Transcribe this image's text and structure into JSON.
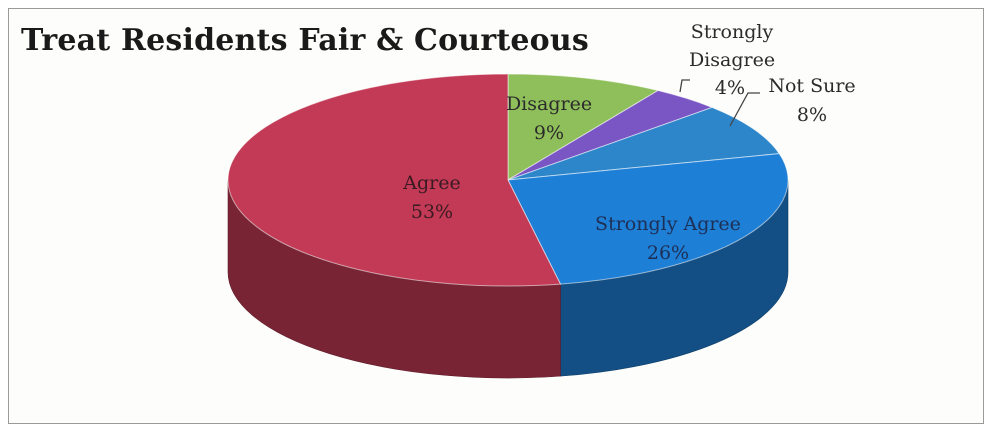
{
  "chart_data": {
    "type": "pie",
    "title": "Treat Residents Fair & Courteous",
    "slices": [
      {
        "name": "Disagree",
        "value": 9,
        "label": "9%",
        "color": "#8fbf5a"
      },
      {
        "name": "Strongly Disagree",
        "value": 4,
        "label": "4%",
        "color": "#7a55c4"
      },
      {
        "name": "Not Sure",
        "value": 8,
        "label": "8%",
        "color": "#2c86c9"
      },
      {
        "name": "Strongly Agree",
        "value": 26,
        "label": "26%",
        "color": "#1e7fd6"
      },
      {
        "name": "Agree",
        "value": 53,
        "label": "53%",
        "color": "#c23a55"
      }
    ],
    "three_d": true,
    "legend": "none"
  }
}
